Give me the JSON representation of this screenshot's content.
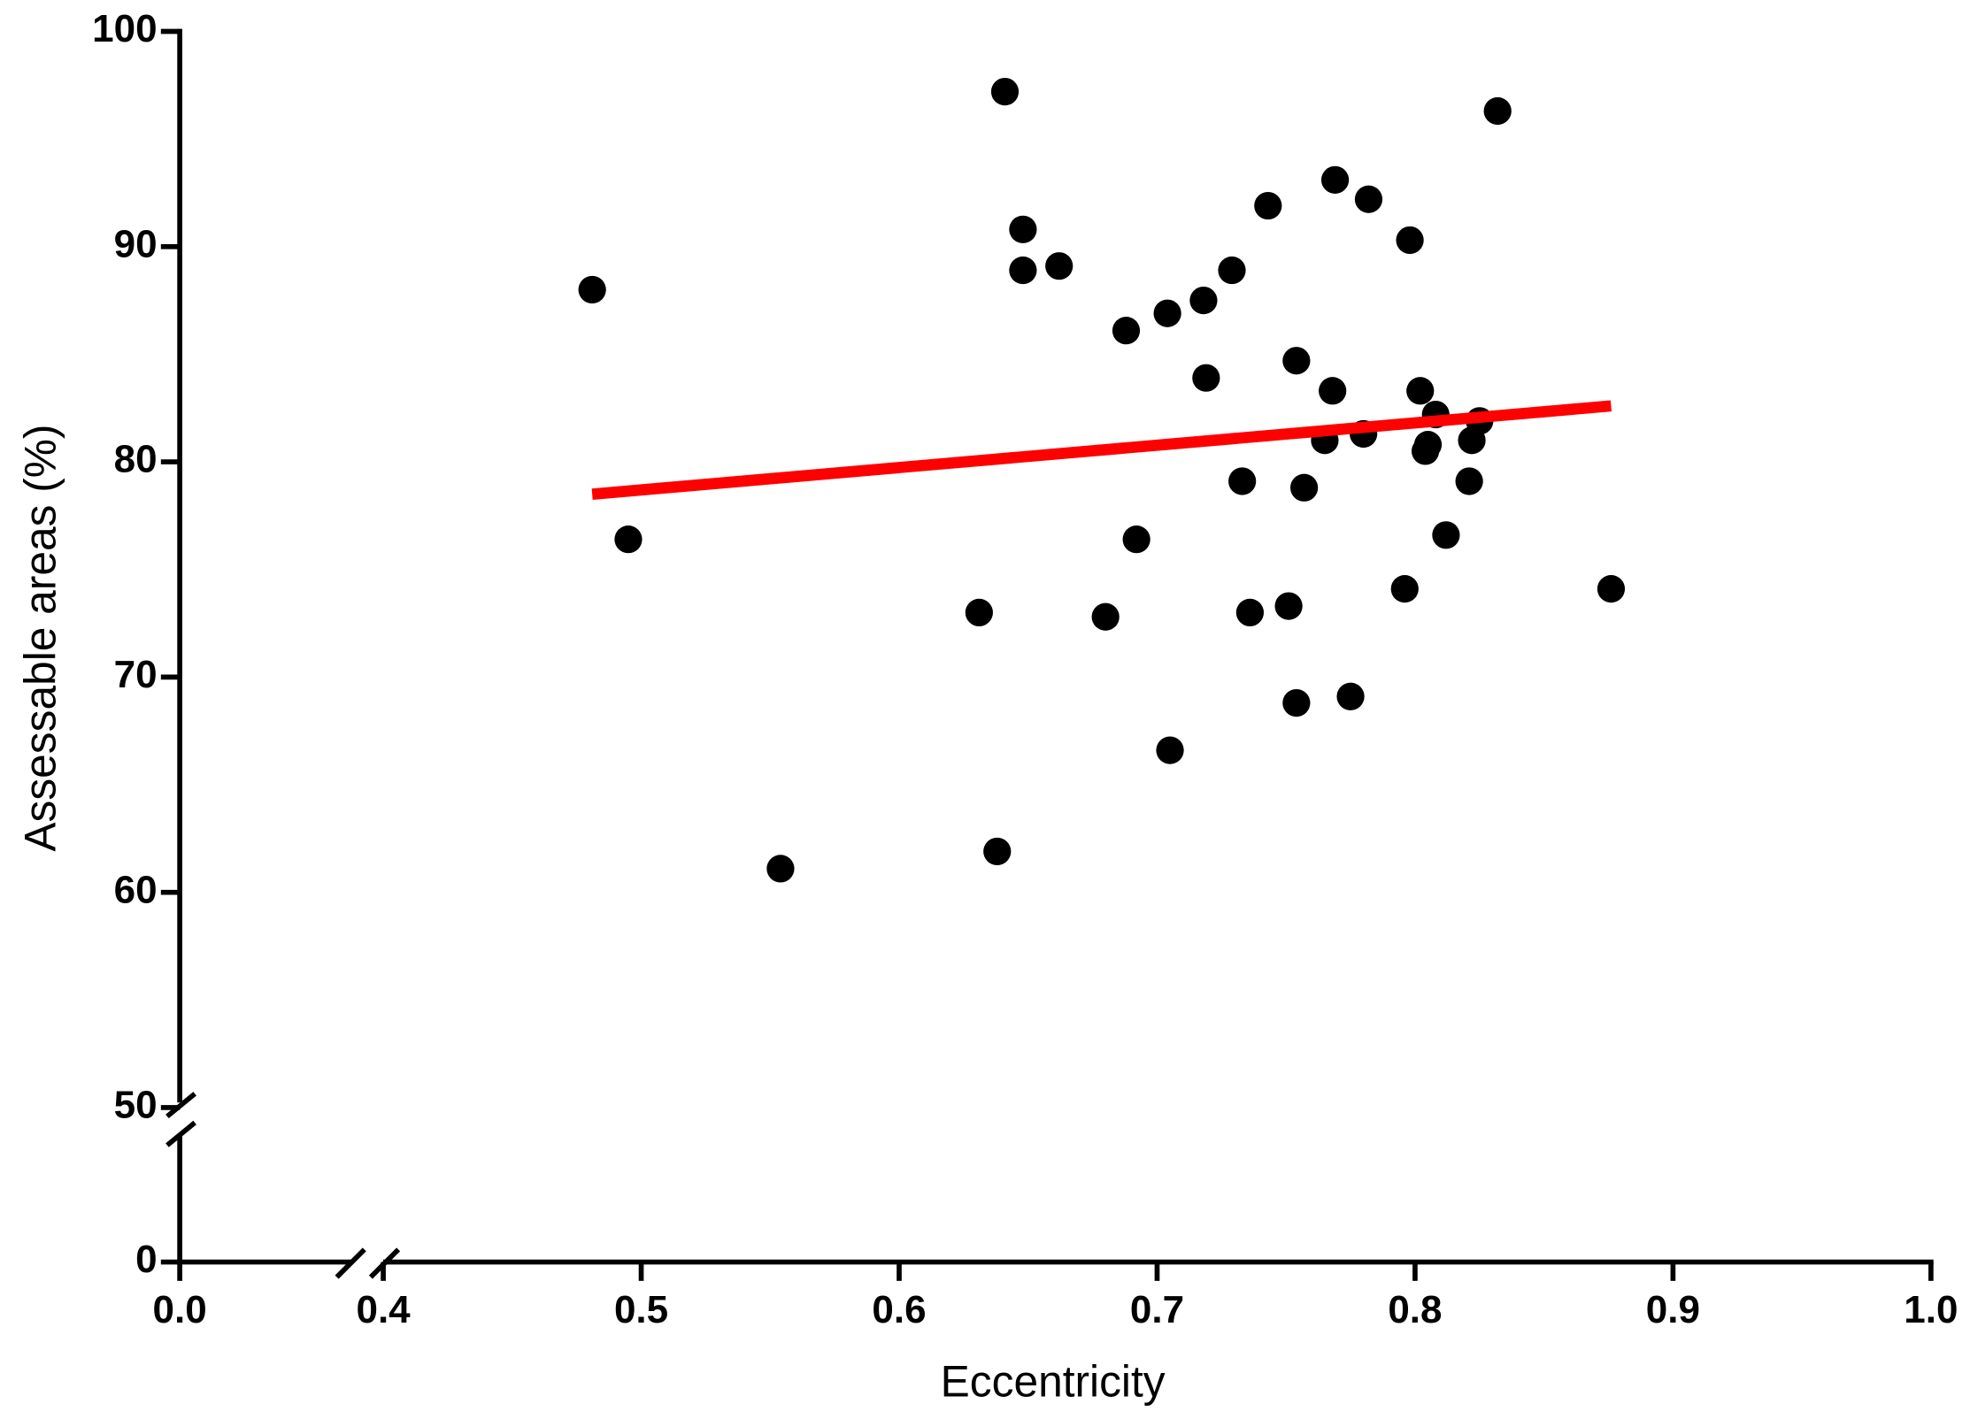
{
  "chart_data": {
    "type": "scatter",
    "x_label": "Eccentricity",
    "y_label": "Assessable areas (%)",
    "xlim": [
      0.4,
      1.0
    ],
    "xticks": [
      {
        "value": 0,
        "label": "0.0"
      },
      0.4,
      0.5,
      0.6,
      0.7,
      0.8,
      0.9,
      {
        "value": 1,
        "label": "1.0"
      }
    ],
    "x_break": true,
    "ylim": [
      50,
      100
    ],
    "yticks": [
      0,
      50,
      60,
      70,
      80,
      90,
      100
    ],
    "y_break": true,
    "series": [
      {
        "color": "#000000",
        "x": [
          0.481,
          0.495,
          0.554,
          0.631,
          0.638,
          0.641,
          0.648,
          0.648,
          0.662,
          0.68,
          0.688,
          0.692,
          0.704,
          0.705,
          0.718,
          0.719,
          0.729,
          0.733,
          0.736,
          0.743,
          0.751,
          0.754,
          0.754,
          0.757,
          0.765,
          0.768,
          0.769,
          0.775,
          0.78,
          0.782,
          0.796,
          0.798,
          0.802,
          0.804,
          0.805,
          0.808,
          0.812,
          0.821,
          0.822,
          0.825,
          0.832,
          0.876
        ],
        "values": [
          88.0,
          76.4,
          61.1,
          73.0,
          61.9,
          97.2,
          90.8,
          88.9,
          89.1,
          72.8,
          86.1,
          76.4,
          86.9,
          66.6,
          87.5,
          83.9,
          88.9,
          79.1,
          73.0,
          91.9,
          73.3,
          84.7,
          68.8,
          78.8,
          81.0,
          83.3,
          93.1,
          69.1,
          81.3,
          92.2,
          74.1,
          90.3,
          83.3,
          80.5,
          80.8,
          82.2,
          76.6,
          79.1,
          81.0,
          81.9,
          96.3,
          74.1
        ]
      }
    ],
    "fit_line": {
      "color": "#ff0000",
      "x": [
        0.481,
        0.876
      ],
      "values": [
        78.5,
        82.6
      ]
    }
  }
}
